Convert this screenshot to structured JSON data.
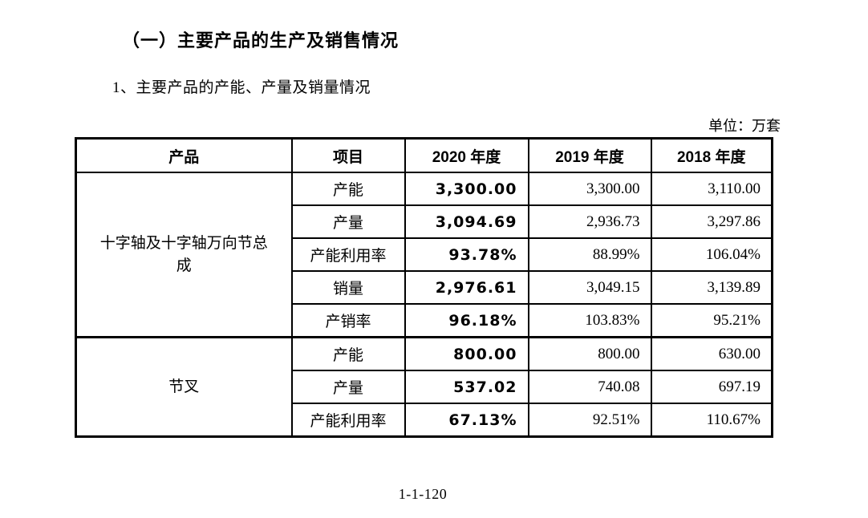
{
  "document": {
    "heading": "（一）主要产品的生产及销售情况",
    "subheading": "1、主要产品的产能、产量及销量情况",
    "unit_note": "单位：万套",
    "page_number": "1-1-120"
  },
  "table": {
    "headers": {
      "product": "产品",
      "item": "项目",
      "y2020": "2020 年度",
      "y2019": "2019 年度",
      "y2018": "2018 年度"
    },
    "groups": [
      {
        "product": "十字轴及十字轴万向节总成",
        "rows": [
          {
            "item": "产能",
            "y2020": "3,300.00",
            "y2019": "3,300.00",
            "y2018": "3,110.00"
          },
          {
            "item": "产量",
            "y2020": "3,094.69",
            "y2019": "2,936.73",
            "y2018": "3,297.86"
          },
          {
            "item": "产能利用率",
            "y2020": "93.78%",
            "y2019": "88.99%",
            "y2018": "106.04%"
          },
          {
            "item": "销量",
            "y2020": "2,976.61",
            "y2019": "3,049.15",
            "y2018": "3,139.89"
          },
          {
            "item": "产销率",
            "y2020": "96.18%",
            "y2019": "103.83%",
            "y2018": "95.21%"
          }
        ]
      },
      {
        "product": "节叉",
        "rows": [
          {
            "item": "产能",
            "y2020": "800.00",
            "y2019": "800.00",
            "y2018": "630.00"
          },
          {
            "item": "产量",
            "y2020": "537.02",
            "y2019": "740.08",
            "y2018": "697.19"
          },
          {
            "item": "产能利用率",
            "y2020": "67.13%",
            "y2019": "92.51%",
            "y2018": "110.67%"
          }
        ]
      }
    ]
  }
}
